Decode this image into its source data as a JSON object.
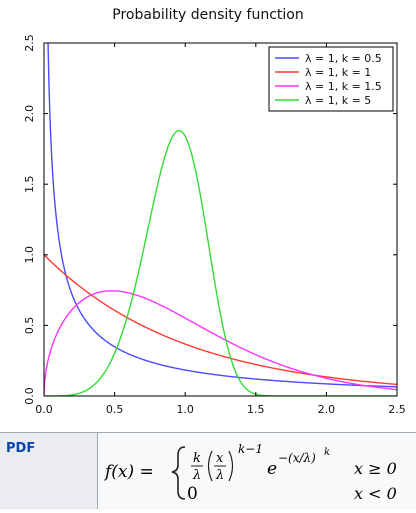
{
  "chart_data": {
    "type": "line",
    "title": "Probability density function",
    "xlabel": "",
    "ylabel": "",
    "xlim": [
      0,
      2.5
    ],
    "ylim": [
      0,
      2.5
    ],
    "x_ticks": [
      "0.0",
      "0.5",
      "1.0",
      "1.5",
      "2.0",
      "2.5"
    ],
    "y_ticks": [
      "0.0",
      "0.5",
      "1.0",
      "1.5",
      "2.0",
      "2.5"
    ],
    "grid": false,
    "legend_position": "top-right",
    "series": [
      {
        "name": "λ = 1, k = 0.5",
        "color": "#4a4aff",
        "lambda": 1,
        "k": 0.5
      },
      {
        "name": "λ = 1, k = 1",
        "color": "#ff3b30",
        "lambda": 1,
        "k": 1
      },
      {
        "name": "λ = 1, k = 1.5",
        "color": "#ff33ff",
        "lambda": 1,
        "k": 1.5
      },
      {
        "name": "λ = 1, k = 5",
        "color": "#33dd33",
        "lambda": 1,
        "k": 5
      }
    ]
  },
  "table": {
    "row_label": "PDF",
    "formula": {
      "lhs": "f(x) =",
      "frac1_num": "k",
      "frac1_den": "λ",
      "frac2_num": "x",
      "frac2_den": "λ",
      "exp1": "k−1",
      "exp_base": "e",
      "exp2": "−(x/λ)",
      "exp2_sup": "k",
      "case2_value": "0",
      "cond1": "x ≥ 0",
      "cond2": "x < 0"
    }
  }
}
